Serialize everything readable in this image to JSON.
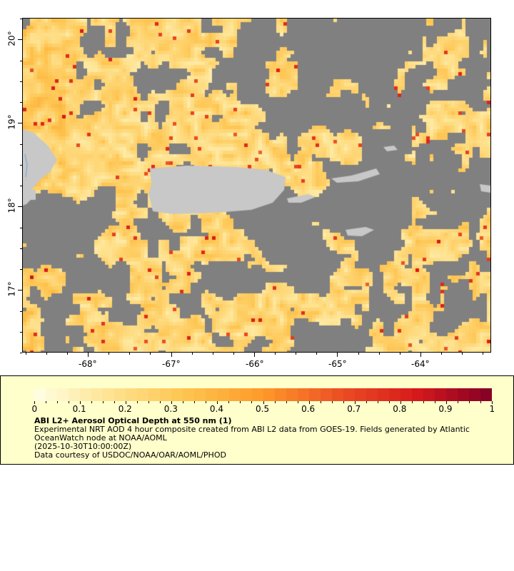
{
  "map": {
    "lon_range": [
      -68.79,
      -63.15
    ],
    "lat_range": [
      16.25,
      20.26
    ],
    "x_ticks": [
      "-68°",
      "-67°",
      "-66°",
      "-65°",
      "-64°"
    ],
    "y_ticks": [
      "20°",
      "19°",
      "18°",
      "17°"
    ],
    "colors": {
      "no_data": "#808080",
      "land": "#c8c8c8",
      "water_line": "#6fa0d8"
    }
  },
  "legend": {
    "colorbar_ticks": [
      "0",
      "0.1",
      "0.2",
      "0.3",
      "0.4",
      "0.5",
      "0.6",
      "0.7",
      "0.8",
      "0.9",
      "1"
    ],
    "colorbar_range": [
      0,
      1
    ],
    "colors": [
      "#ffffe5",
      "#fee391",
      "#fec44f",
      "#fe9929",
      "#ec4f24",
      "#d7191c",
      "#800026"
    ],
    "title": "ABI L2+ Aerosol Optical Depth at 550 nm (1)",
    "line1": "Experimental NRT AOD 4 hour composite created from ABI L2 data from GOES-19. Fields generated by Atlantic",
    "line2": "OceanWatch node at NOAA/AOML",
    "line3": "(2025-10-30T10:00:00Z)",
    "line4": "Data courtesy of USDOC/NOAA/OAR/AOML/PHOD"
  }
}
